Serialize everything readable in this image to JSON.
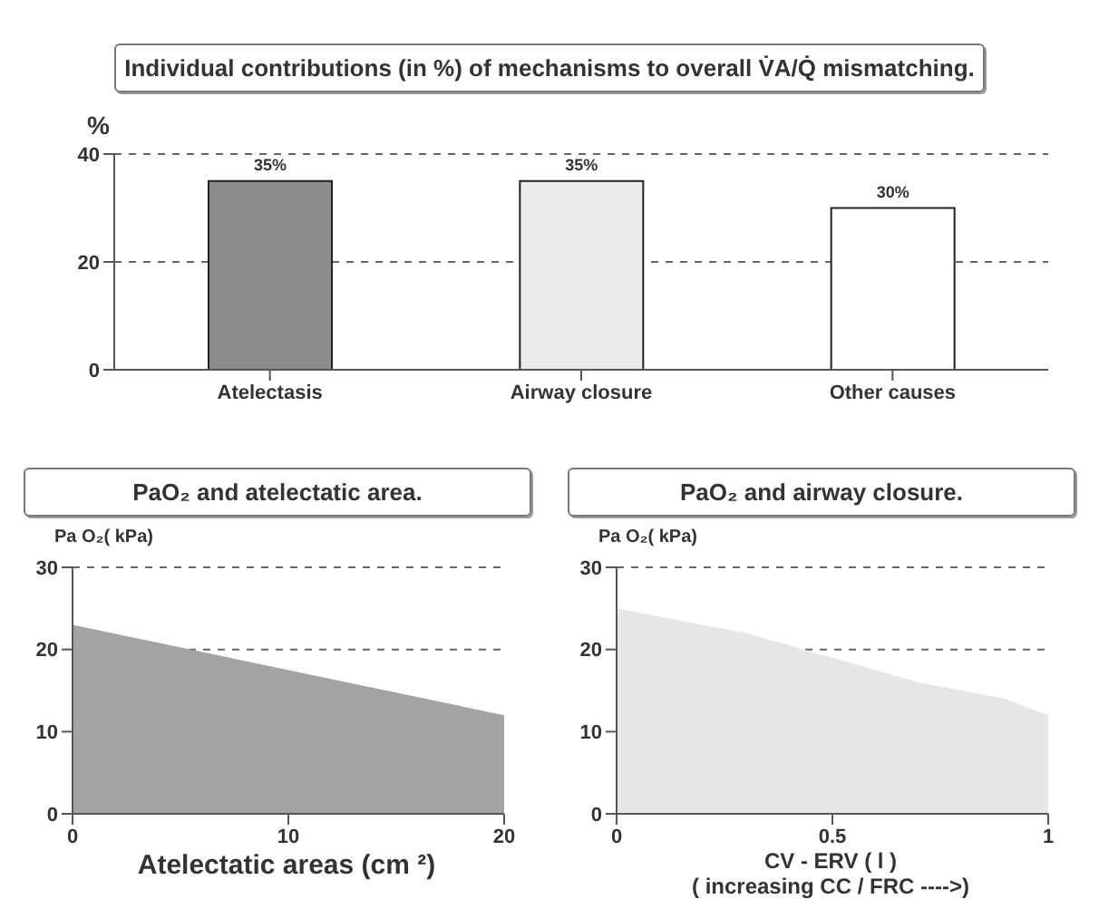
{
  "chart_data": [
    {
      "type": "bar",
      "title": "Individual contributions (in %) of mechanisms to overall V̇A/Q̇ mismatching.",
      "ylabel": "%",
      "categories": [
        "Atelectasis",
        "Airway closure",
        "Other causes"
      ],
      "values": [
        35,
        35,
        30
      ],
      "colors": [
        "#8c8c8c",
        "#ebebeb",
        "#ffffff"
      ],
      "value_labels": [
        "35%",
        "35%",
        "30%"
      ],
      "ylim": [
        0,
        40
      ],
      "yticks": [
        0,
        20,
        40
      ],
      "grid": "y"
    },
    {
      "type": "area",
      "title": "PaO₂ and atelectatic area.",
      "ylabel": "Pa O₂( kPa)",
      "xlabel": "Atelectatic areas (cm ²)",
      "x": [
        0,
        20
      ],
      "values": [
        23,
        12
      ],
      "color": "#a3a3a3",
      "xlim": [
        0,
        20
      ],
      "xticks": [
        0,
        10,
        20
      ],
      "ylim": [
        0,
        30
      ],
      "yticks": [
        0,
        10,
        20,
        30
      ],
      "grid": "y"
    },
    {
      "type": "area",
      "title": "PaO₂ and airway closure.",
      "ylabel": "Pa O₂( kPa)",
      "xlabel": "CV - ERV ( l )\n( increasing CC / FRC ---->)",
      "x": [
        0,
        0.1,
        0.3,
        0.5,
        0.7,
        0.9,
        1
      ],
      "values": [
        25,
        24,
        22,
        19,
        16,
        14,
        12
      ],
      "color": "#e6e6e6",
      "xlim": [
        0,
        1
      ],
      "xticks": [
        0,
        0.5,
        1
      ],
      "ylim": [
        0,
        30
      ],
      "yticks": [
        0,
        10,
        20,
        30
      ],
      "grid": "y"
    }
  ]
}
